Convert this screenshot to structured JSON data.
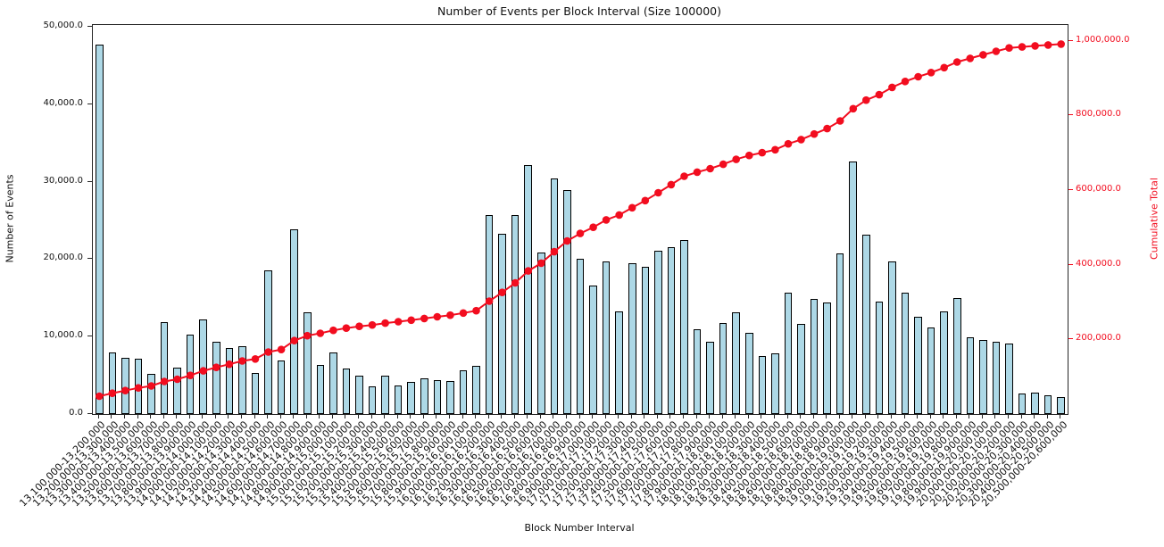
{
  "chart_data": {
    "type": "bar",
    "title": "Number of Events per Block Interval (Size 100000)",
    "xlabel": "Block Number Interval",
    "ylabel_left": "Number of Events",
    "ylabel_right": "Cumulative Total",
    "grid": false,
    "legend": "none",
    "categories": [
      "13,100,000-13,200,000",
      "13,200,000-13,300,000",
      "13,300,000-13,400,000",
      "13,400,000-13,500,000",
      "13,500,000-13,600,000",
      "13,600,000-13,700,000",
      "13,700,000-13,800,000",
      "13,800,000-13,900,000",
      "13,900,000-14,000,000",
      "14,000,000-14,100,000",
      "14,100,000-14,200,000",
      "14,200,000-14,300,000",
      "14,300,000-14,400,000",
      "14,400,000-14,500,000",
      "14,500,000-14,600,000",
      "14,600,000-14,700,000",
      "14,700,000-14,800,000",
      "14,800,000-14,900,000",
      "14,900,000-15,000,000",
      "15,000,000-15,100,000",
      "15,100,000-15,200,000",
      "15,200,000-15,300,000",
      "15,300,000-15,400,000",
      "15,400,000-15,500,000",
      "15,500,000-15,600,000",
      "15,600,000-15,700,000",
      "15,700,000-15,800,000",
      "15,800,000-15,900,000",
      "15,900,000-16,000,000",
      "16,000,000-16,100,000",
      "16,100,000-16,200,000",
      "16,200,000-16,300,000",
      "16,300,000-16,400,000",
      "16,400,000-16,500,000",
      "16,500,000-16,600,000",
      "16,600,000-16,700,000",
      "16,700,000-16,800,000",
      "16,800,000-16,900,000",
      "16,900,000-17,000,000",
      "17,000,000-17,100,000",
      "17,100,000-17,200,000",
      "17,200,000-17,300,000",
      "17,300,000-17,400,000",
      "17,400,000-17,500,000",
      "17,500,000-17,600,000",
      "17,600,000-17,700,000",
      "17,700,000-17,800,000",
      "17,800,000-17,900,000",
      "17,900,000-18,000,000",
      "18,000,000-18,100,000",
      "18,100,000-18,200,000",
      "18,200,000-18,300,000",
      "18,300,000-18,400,000",
      "18,400,000-18,500,000",
      "18,500,000-18,600,000",
      "18,600,000-18,700,000",
      "18,700,000-18,800,000",
      "18,800,000-18,900,000",
      "18,900,000-19,000,000",
      "19,000,000-19,100,000",
      "19,100,000-19,200,000",
      "19,200,000-19,300,000",
      "19,300,000-19,400,000",
      "19,400,000-19,500,000",
      "19,500,000-19,600,000",
      "19,600,000-19,700,000",
      "19,700,000-19,800,000",
      "19,800,000-19,900,000",
      "19,900,000-20,000,000",
      "20,000,000-20,100,000",
      "20,100,000-20,200,000",
      "20,200,000-20,300,000",
      "20,300,000-20,400,000",
      "20,400,000-20,500,000",
      "20,500,000-20,600,000"
    ],
    "series": [
      {
        "name": "Number of Events",
        "type": "bar",
        "axis": "left",
        "color": "#add8e6",
        "edge_color": "#000000",
        "values": [
          47700,
          7900,
          7300,
          7200,
          5200,
          11900,
          6000,
          10200,
          12200,
          9300,
          8500,
          8700,
          5300,
          18600,
          6900,
          23900,
          13100,
          6300,
          8000,
          5900,
          4900,
          3600,
          5000,
          3650,
          4200,
          4600,
          4400,
          4300,
          5700,
          6200,
          25700,
          23300,
          25700,
          32100,
          20800,
          30400,
          28900,
          20100,
          16600,
          19700,
          13200,
          19500,
          19000,
          21100,
          21600,
          22500,
          11000,
          9300,
          11800,
          13100,
          10500,
          7500,
          7800,
          15700,
          11600,
          14900,
          14400,
          20700,
          32600,
          23100,
          14500,
          19700,
          15700,
          12600,
          11200,
          13200,
          15000,
          9900,
          9600,
          9300,
          9100,
          2650,
          2800,
          2450,
          2200
        ]
      },
      {
        "name": "Cumulative Total",
        "type": "line",
        "axis": "right",
        "color": "#f20d1f",
        "marker": "circle",
        "values": [
          47700,
          55600,
          62900,
          70100,
          75300,
          87200,
          93200,
          103400,
          115600,
          124900,
          133400,
          142100,
          147400,
          166000,
          172900,
          196800,
          209900,
          216200,
          224200,
          230100,
          235000,
          238600,
          243600,
          247250,
          251450,
          256050,
          260450,
          264750,
          270450,
          276650,
          302350,
          325650,
          351350,
          383450,
          404250,
          434650,
          463550,
          483650,
          500250,
          519950,
          533150,
          552650,
          571650,
          592750,
          614350,
          636850,
          647850,
          657150,
          668950,
          682050,
          692550,
          700050,
          707850,
          723550,
          735150,
          750050,
          764450,
          785150,
          817750,
          840850,
          855350,
          875050,
          890750,
          903350,
          914550,
          927750,
          942750,
          952650,
          962250,
          971550,
          980650,
          983300,
          986100,
          988550,
          990750
        ]
      }
    ],
    "left_axis": {
      "min": 0,
      "max": 50000,
      "tick_values": [
        0,
        10000,
        20000,
        30000,
        40000,
        50000
      ],
      "tick_labels": [
        "0.0",
        "10,000.0",
        "20,000.0",
        "30,000.0",
        "40,000.0",
        "50,000.0"
      ]
    },
    "right_axis": {
      "min": 0,
      "max": 1042000,
      "tick_values": [
        200000,
        400000,
        600000,
        800000,
        1000000
      ],
      "tick_labels": [
        "200,000.0",
        "400,000.0",
        "600,000.0",
        "800,000.0",
        "1,000,000.0"
      ]
    }
  },
  "colors": {
    "background": "#ffffff",
    "bar_fill": "#add8e6",
    "bar_edge": "#000000",
    "line_red": "#f20d1f",
    "spine": "#262626",
    "text": "#111111"
  }
}
